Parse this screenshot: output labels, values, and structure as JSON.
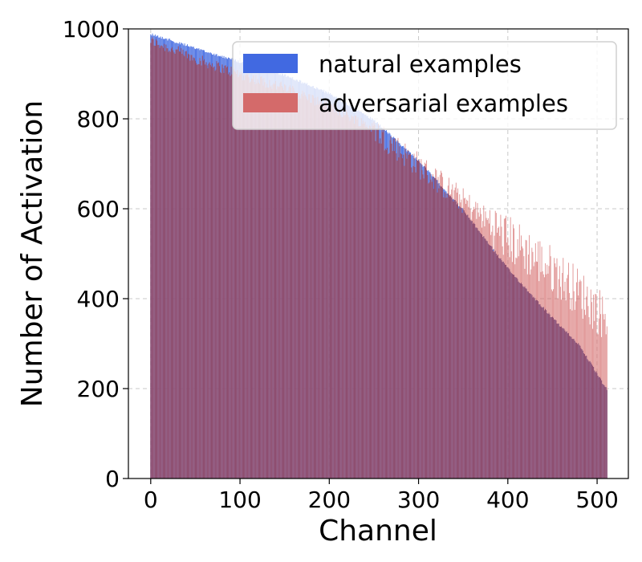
{
  "chart_data": {
    "type": "bar",
    "title": "",
    "xlabel": "Channel",
    "ylabel": "Number of Activation",
    "xlim": [
      -25,
      535
    ],
    "ylim": [
      0,
      1000
    ],
    "xticks": [
      0,
      100,
      200,
      300,
      400,
      500
    ],
    "yticks": [
      0,
      200,
      400,
      600,
      800,
      1000
    ],
    "grid": true,
    "legend": "upper right",
    "n_channels": 512,
    "series": [
      {
        "name": "natural examples",
        "color": "#4169e1",
        "description": "Channels sorted by activation count on natural inputs; decreasing from about 990 at channel 0 to about 200 at channel 511.",
        "anchors": [
          [
            0,
            992
          ],
          [
            50,
            960
          ],
          [
            100,
            930
          ],
          [
            150,
            900
          ],
          [
            200,
            860
          ],
          [
            250,
            800
          ],
          [
            300,
            710
          ],
          [
            350,
            600
          ],
          [
            400,
            470
          ],
          [
            450,
            360
          ],
          [
            480,
            300
          ],
          [
            511,
            200
          ]
        ]
      },
      {
        "name": "adversarial examples",
        "color": "#d46a6a",
        "description": "Activation counts on adversarial inputs for the same channel order; close to natural for early channels, then noisy and higher than natural beyond channel 400 (up to about 440 near channel 500).",
        "anchors": [
          [
            0,
            975
          ],
          [
            50,
            935
          ],
          [
            100,
            900
          ],
          [
            150,
            870
          ],
          [
            200,
            830
          ],
          [
            250,
            780
          ],
          [
            300,
            700
          ],
          [
            350,
            620
          ],
          [
            400,
            540
          ],
          [
            450,
            470
          ],
          [
            480,
            420
          ],
          [
            511,
            360
          ]
        ]
      }
    ],
    "overlap_color": "#8b4a6b"
  }
}
